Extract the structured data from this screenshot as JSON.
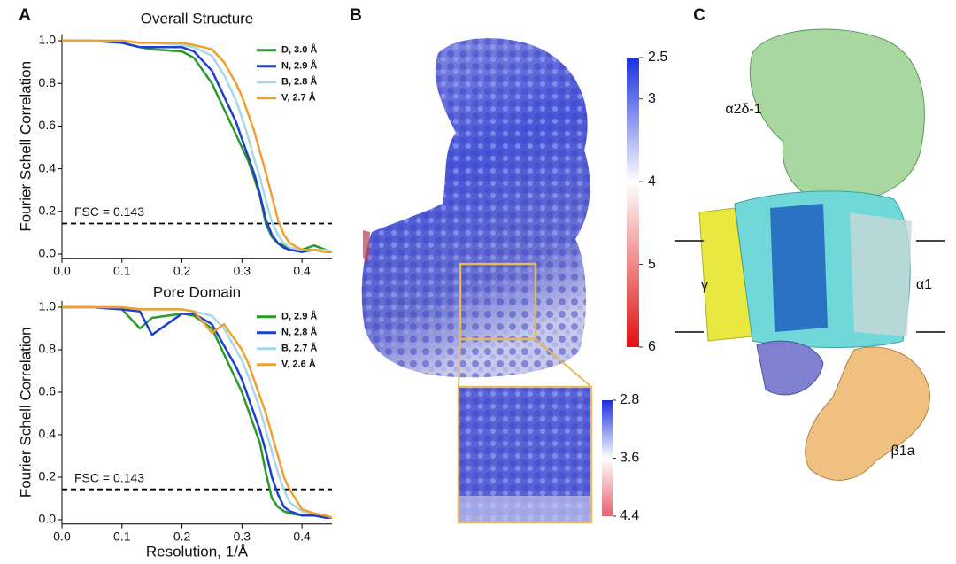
{
  "chart_data": [
    {
      "type": "line",
      "title": "Overall Structure",
      "y_label": "Fourier Schell Correlation",
      "x": [
        0,
        0.05,
        0.1,
        0.13,
        0.15,
        0.2,
        0.22,
        0.25,
        0.27,
        0.29,
        0.3,
        0.31,
        0.32,
        0.33,
        0.34,
        0.35,
        0.36,
        0.37,
        0.38,
        0.4,
        0.42,
        0.44,
        0.45
      ],
      "series": [
        {
          "name": "D, 3.0 Å",
          "color": "#2a9a2a",
          "values": [
            1,
            1,
            0.99,
            0.97,
            0.96,
            0.95,
            0.92,
            0.8,
            0.68,
            0.56,
            0.5,
            0.44,
            0.36,
            0.27,
            0.14,
            0.08,
            0.05,
            0.04,
            0.02,
            0.02,
            0.04,
            0.02,
            0.01
          ]
        },
        {
          "name": "N, 2.9 Å",
          "color": "#1f3fcf",
          "values": [
            1,
            1,
            0.99,
            0.97,
            0.97,
            0.97,
            0.95,
            0.86,
            0.74,
            0.62,
            0.54,
            0.46,
            0.38,
            0.28,
            0.16,
            0.09,
            0.05,
            0.03,
            0.02,
            0.01,
            0.02,
            0.01,
            0.01
          ]
        },
        {
          "name": "B, 2.8 Å",
          "color": "#a8d8e8",
          "values": [
            1,
            1,
            1,
            0.99,
            0.99,
            0.98,
            0.97,
            0.93,
            0.84,
            0.72,
            0.64,
            0.55,
            0.45,
            0.36,
            0.25,
            0.15,
            0.09,
            0.05,
            0.03,
            0.02,
            0.02,
            0.02,
            0.01
          ]
        },
        {
          "name": "V, 2.7 Å",
          "color": "#f0a030",
          "values": [
            1,
            1,
            1,
            0.99,
            0.99,
            0.99,
            0.98,
            0.96,
            0.9,
            0.8,
            0.74,
            0.66,
            0.58,
            0.48,
            0.38,
            0.27,
            0.16,
            0.09,
            0.05,
            0.02,
            0.02,
            0.01,
            0.01
          ]
        }
      ],
      "threshold": 0.143,
      "threshold_label": "FSC = 0.143",
      "xlim": [
        0,
        0.45
      ],
      "xticks": [
        {
          "value": 0,
          "label": "0.0"
        },
        0.1,
        0.2,
        0.3,
        0.4
      ],
      "ylim": [
        -0.02,
        1.03
      ],
      "yticks": [
        {
          "value": 0,
          "label": "0.0"
        },
        0.2,
        0.4,
        0.6,
        0.8,
        {
          "value": 1,
          "label": "1.0"
        }
      ],
      "legend": "upper right"
    },
    {
      "type": "line",
      "title": "Pore Domain",
      "y_label": "Fourier Schell Correlation",
      "x_label": "Resolution, 1/Å",
      "x": [
        0,
        0.05,
        0.1,
        0.13,
        0.15,
        0.2,
        0.22,
        0.25,
        0.27,
        0.29,
        0.3,
        0.31,
        0.32,
        0.33,
        0.34,
        0.35,
        0.36,
        0.37,
        0.38,
        0.4,
        0.42,
        0.44,
        0.45
      ],
      "series": [
        {
          "name": "D, 2.9 Å",
          "color": "#2a9a2a",
          "values": [
            1,
            1,
            0.99,
            0.9,
            0.95,
            0.97,
            0.96,
            0.9,
            0.78,
            0.66,
            0.6,
            0.52,
            0.44,
            0.36,
            0.22,
            0.1,
            0.06,
            0.04,
            0.03,
            0.02,
            0.02,
            0.01,
            0.01
          ]
        },
        {
          "name": "N, 2.8 Å",
          "color": "#1f3fcf",
          "values": [
            1,
            1,
            0.99,
            0.98,
            0.87,
            0.97,
            0.97,
            0.92,
            0.82,
            0.72,
            0.66,
            0.58,
            0.5,
            0.42,
            0.32,
            0.2,
            0.12,
            0.06,
            0.04,
            0.02,
            0.02,
            0.01,
            0.01
          ]
        },
        {
          "name": "B, 2.7 Å",
          "color": "#a8d8e8",
          "values": [
            1,
            1,
            1,
            0.99,
            0.99,
            0.99,
            0.98,
            0.96,
            0.9,
            0.8,
            0.75,
            0.68,
            0.6,
            0.52,
            0.42,
            0.32,
            0.22,
            0.14,
            0.08,
            0.04,
            0.03,
            0.02,
            0.01
          ]
        },
        {
          "name": "V, 2.6 Å",
          "color": "#f0a030",
          "values": [
            1,
            1,
            1,
            0.99,
            0.99,
            0.99,
            0.98,
            0.88,
            0.92,
            0.84,
            0.8,
            0.74,
            0.66,
            0.58,
            0.5,
            0.4,
            0.3,
            0.2,
            0.14,
            0.05,
            0.03,
            0.02,
            0.01
          ]
        }
      ],
      "threshold": 0.143,
      "threshold_label": "FSC = 0.143",
      "xlim": [
        0,
        0.45
      ],
      "xticks": [
        {
          "value": 0,
          "label": "0.0"
        },
        0.1,
        0.2,
        0.3,
        0.4
      ],
      "ylim": [
        -0.02,
        1.03
      ],
      "yticks": [
        {
          "value": 0,
          "label": "0.0"
        },
        0.2,
        0.4,
        0.6,
        0.8,
        {
          "value": 1,
          "label": "1.0"
        }
      ],
      "legend": "upper right"
    }
  ],
  "panel_labels": [
    "A",
    "B",
    "C"
  ],
  "map_colorbar": {
    "lim": [
      2.5,
      6
    ],
    "ticks": [
      2.5,
      3,
      4,
      5,
      6
    ]
  },
  "inset_colorbar": {
    "lim": [
      2.8,
      4.4
    ],
    "ticks": [
      2.8,
      3.6,
      4.4
    ]
  },
  "structure_labels": [
    "α2δ-1",
    "γ",
    "α1",
    "β1a"
  ]
}
